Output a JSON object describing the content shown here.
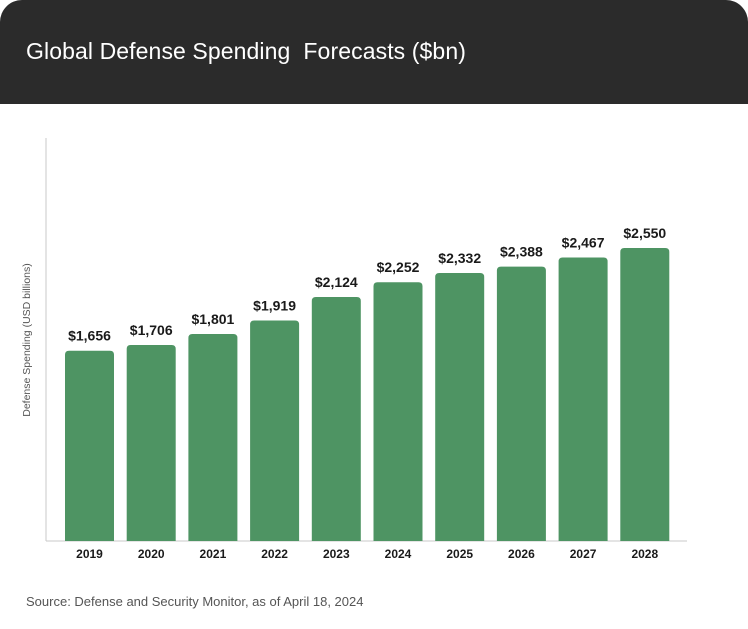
{
  "title": "Global Defense Spending  Forecasts ($bn)",
  "source": "Source: Defense and Security Monitor, as of April 18, 2024",
  "colors": {
    "header_bg": "#2b2b2b",
    "bar": "#4e9463",
    "axis": "#c8c8c8",
    "label_text": "#1a1a1a",
    "ylabel_text": "#555555"
  },
  "chart_data": {
    "type": "bar",
    "title": "Global Defense Spending  Forecasts ($bn)",
    "xlabel": "",
    "ylabel": "Defense Spending (USD billions)",
    "categories": [
      "2019",
      "2020",
      "2021",
      "2022",
      "2023",
      "2024",
      "2025",
      "2026",
      "2027",
      "2028"
    ],
    "values": [
      1656,
      1706,
      1801,
      1919,
      2124,
      2252,
      2332,
      2388,
      2467,
      2550
    ],
    "data_labels": [
      "$1,656",
      "$1,706",
      "$1,801",
      "$1,919",
      "$2,124",
      "$2,252",
      "$2,332",
      "$2,388",
      "$2,467",
      "$2,550"
    ],
    "ylim": [
      0,
      2870
    ],
    "grid": false,
    "legend": "none"
  }
}
